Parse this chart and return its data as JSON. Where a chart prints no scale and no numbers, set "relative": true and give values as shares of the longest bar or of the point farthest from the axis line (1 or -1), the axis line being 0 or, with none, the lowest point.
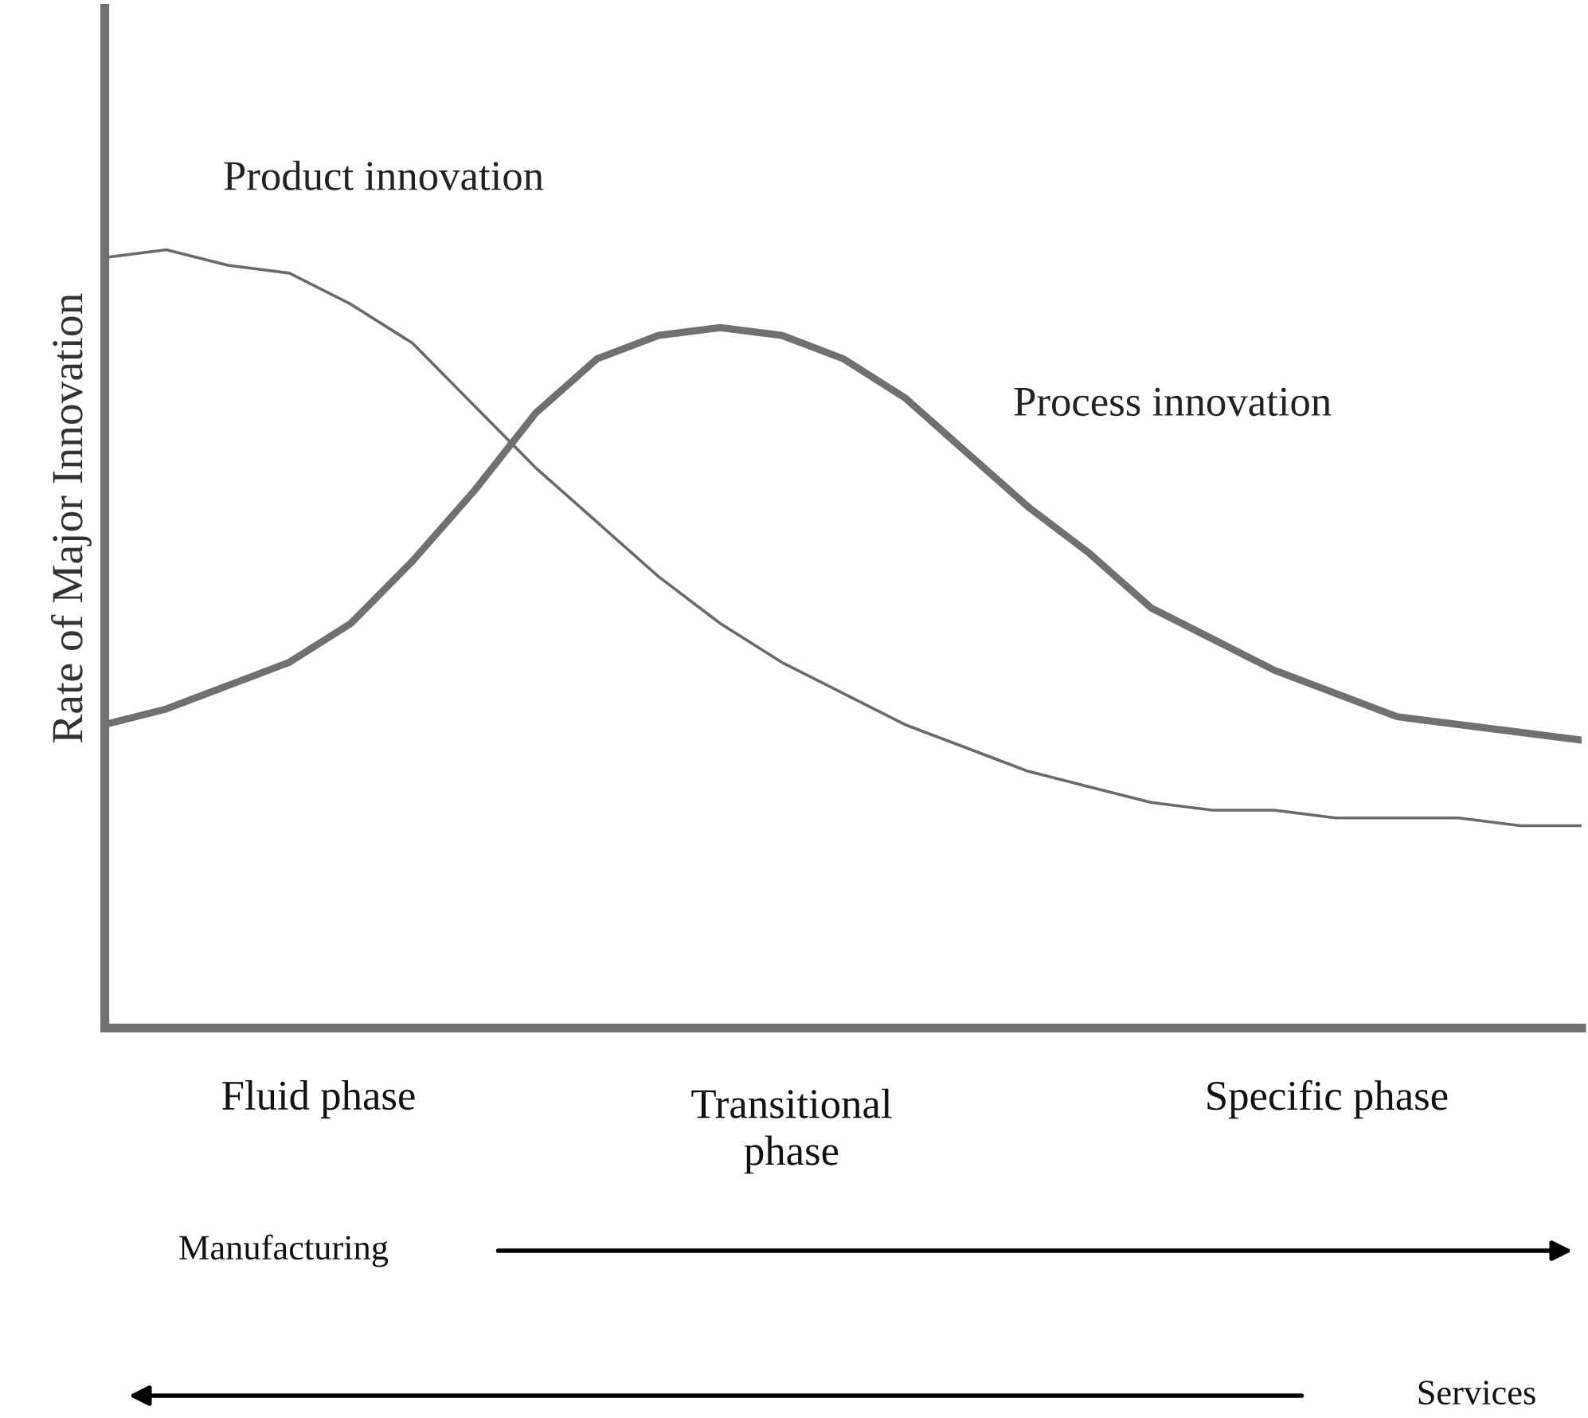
{
  "chart_data": {
    "type": "line",
    "relative": true,
    "ylabel": "Rate of Major Innovation",
    "categories": [
      null,
      null,
      null,
      null,
      null,
      null,
      null,
      null,
      null,
      null,
      null,
      null,
      null,
      null,
      null,
      null,
      null,
      null,
      null,
      null,
      null,
      null,
      null,
      null,
      null
    ],
    "series": [
      {
        "name": "Product innovation",
        "color": "#6a6a6a",
        "values": [
          0.99,
          1.0,
          0.98,
          0.97,
          0.93,
          0.88,
          0.8,
          0.72,
          0.65,
          0.58,
          0.52,
          0.47,
          0.43,
          0.39,
          0.36,
          0.33,
          0.31,
          0.29,
          0.28,
          0.28,
          0.27,
          0.27,
          0.27,
          0.26,
          0.26
        ]
      },
      {
        "name": "Process innovation",
        "color": "#707070",
        "values": [
          0.39,
          0.41,
          0.44,
          0.47,
          0.52,
          0.6,
          0.69,
          0.79,
          0.86,
          0.89,
          0.9,
          0.89,
          0.86,
          0.81,
          0.74,
          0.67,
          0.61,
          0.54,
          0.5,
          0.46,
          0.43,
          0.4,
          0.39,
          0.38,
          0.37
        ]
      }
    ],
    "annotations": [
      "Fluid phase",
      "Transitional\nphase",
      "Specific phase",
      "Manufacturing",
      "Services"
    ],
    "grid": false,
    "legend": false,
    "marker": "none",
    "line_style": "solid"
  }
}
